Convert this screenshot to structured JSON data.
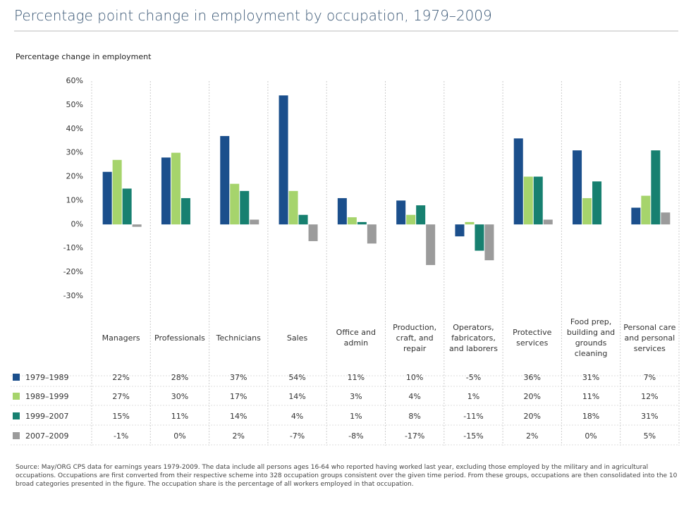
{
  "chart_data": {
    "type": "bar",
    "title": "Percentage point change in employment by occupation, 1979–2009",
    "y_label": "Percentage change in employment",
    "categories": [
      "Managers",
      "Professionals",
      "Technicians",
      "Sales",
      "Office and admin",
      "Production, craft, and repair",
      "Operators, fabricators, and laborers",
      "Protective services",
      "Food prep, building and grounds cleaning",
      "Personal care and personal services"
    ],
    "series": [
      {
        "name": "1979–1989",
        "color": "#1b4f8c",
        "values": [
          22,
          28,
          37,
          54,
          11,
          10,
          -5,
          36,
          31,
          7
        ],
        "value_labels": [
          "22%",
          "28%",
          "37%",
          "54%",
          "11%",
          "10%",
          "-5%",
          "36%",
          "31%",
          "7%"
        ]
      },
      {
        "name": "1989–1999",
        "color": "#a6d46c",
        "values": [
          27,
          30,
          17,
          14,
          3,
          4,
          1,
          20,
          11,
          12
        ],
        "value_labels": [
          "27%",
          "30%",
          "17%",
          "14%",
          "3%",
          "4%",
          "1%",
          "20%",
          "11%",
          "12%"
        ]
      },
      {
        "name": "1999–2007",
        "color": "#178070",
        "values": [
          15,
          11,
          14,
          4,
          1,
          8,
          -11,
          20,
          18,
          31
        ],
        "value_labels": [
          "15%",
          "11%",
          "14%",
          "4%",
          "1%",
          "8%",
          "-11%",
          "20%",
          "18%",
          "31%"
        ]
      },
      {
        "name": "2007–2009",
        "color": "#9b9b9b",
        "values": [
          -1,
          0,
          2,
          -7,
          -8,
          -17,
          -15,
          2,
          0,
          5
        ],
        "value_labels": [
          "-1%",
          "0%",
          "2%",
          "-7%",
          "-8%",
          "-17%",
          "-15%",
          "2%",
          "0%",
          "5%"
        ]
      }
    ],
    "ylim": [
      -30,
      60
    ],
    "yticks": [
      {
        "value": -30,
        "label": "-30%"
      },
      {
        "value": -20,
        "label": "-20%"
      },
      {
        "value": -10,
        "label": "-10%"
      },
      {
        "value": 0,
        "label": "0%"
      },
      {
        "value": 10,
        "label": "10%"
      },
      {
        "value": 20,
        "label": "20%"
      },
      {
        "value": 30,
        "label": "30%"
      },
      {
        "value": 40,
        "label": "40%"
      },
      {
        "value": 50,
        "label": "50%"
      },
      {
        "value": 60,
        "label": "60%"
      }
    ],
    "grid": false,
    "source": "Source: May/ORG CPS data for earnings years 1979-2009. The data include all persons ages 16-64 who reported having worked last year, excluding those employed by the military and in agricultural occupations. Occupations are first converted from their respective scheme into 328 occupation groups consistent over the given time period. From these groups, occupations are then consolidated into the 10 broad categories presented in the figure. The occupation share is the percentage of all workers employed in that occupation."
  }
}
